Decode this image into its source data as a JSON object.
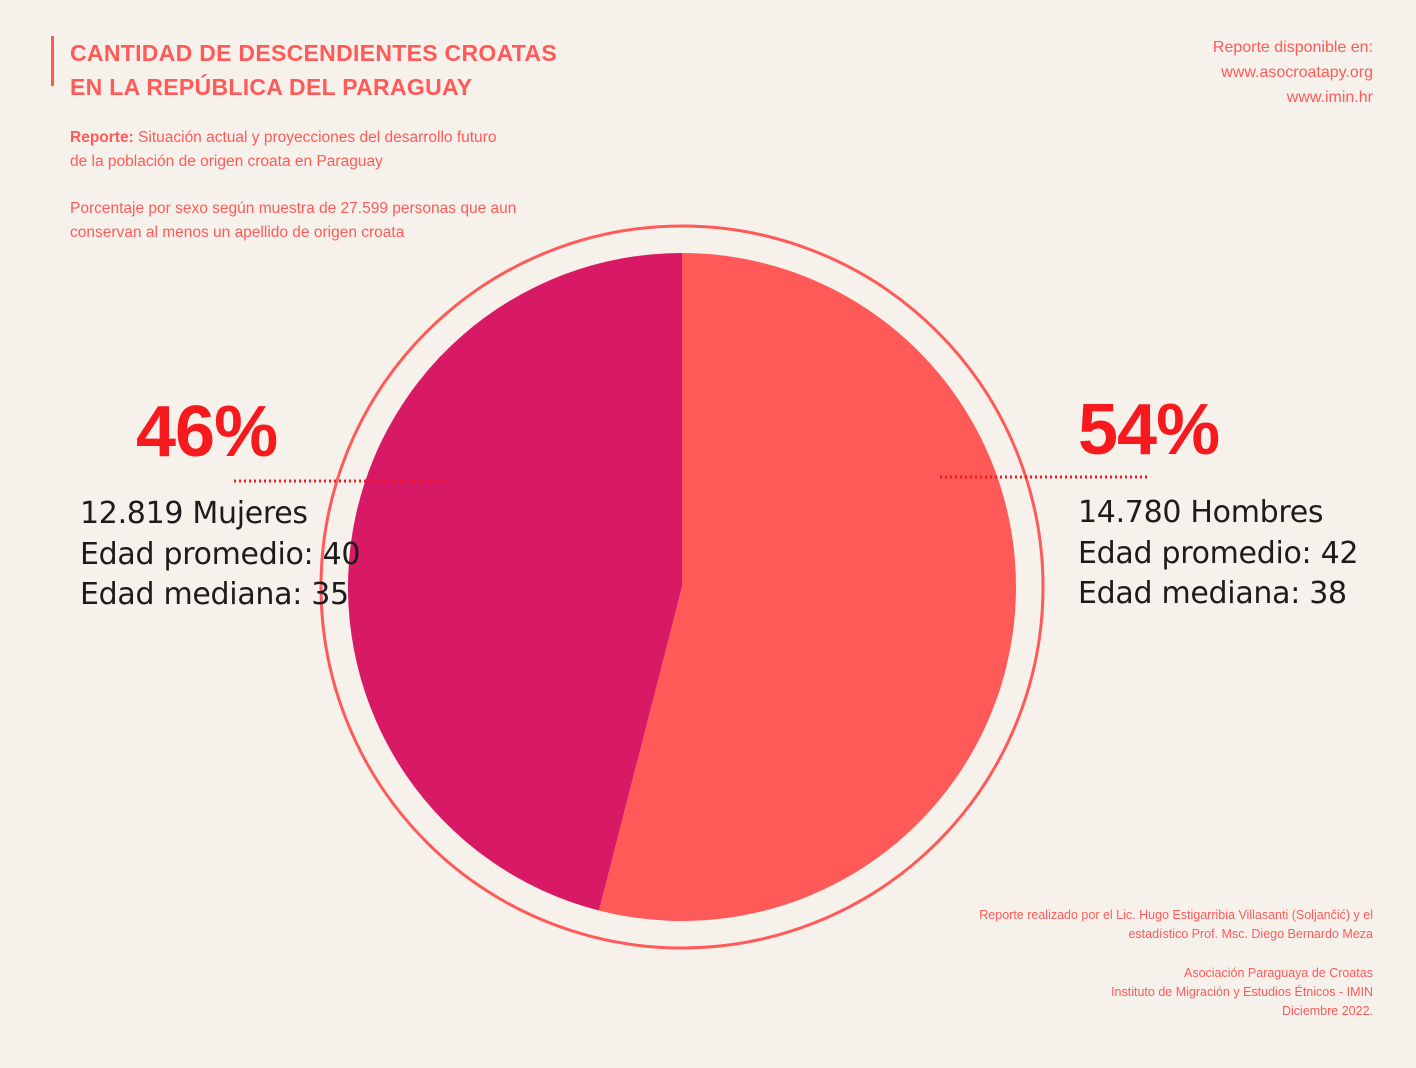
{
  "header": {
    "title_lines": [
      "CANTIDAD DE DESCENDIENTES CROATAS",
      "EN LA REPÚBLICA DEL PARAGUAY"
    ],
    "report_label": "Reporte:",
    "report_text_line1": " Situación actual y proyecciones del desarrollo futuro",
    "report_text_line2": "de la población de origen croata en Paraguay",
    "description_lines": [
      "Porcentaje por sexo según muestra de 27.599 personas que aun",
      "conservan al menos un apellido de origen croata"
    ]
  },
  "source": {
    "label": "Reporte disponible en:",
    "links": [
      "www.asocroatapy.org",
      "www.imin.hr"
    ]
  },
  "chart_data": {
    "type": "pie",
    "total_sample": 27599,
    "slices": [
      {
        "label": "Hombres",
        "value": 54,
        "count": 14780,
        "color": "#ff5a57"
      },
      {
        "label": "Mujeres",
        "value": 46,
        "count": 12819,
        "color": "#d81966"
      }
    ],
    "annotations": {
      "left": {
        "percent": "46%",
        "lines": [
          "12.819 Mujeres",
          "Edad promedio: 40",
          "Edad mediana: 35"
        ]
      },
      "right": {
        "percent": "54%",
        "lines": [
          "14.780 Hombres",
          "Edad promedio: 42",
          "Edad mediana: 38"
        ]
      }
    },
    "colors": {
      "accent": "#ff5a57",
      "highlight": "#f6191e",
      "women": "#d81966",
      "men": "#ff5a57",
      "background": "#f7f1ec"
    }
  },
  "footer": {
    "credits_lines": [
      "Reporte realizado por el Lic. Hugo Estigarribia Villasanti (Soljančić) y el",
      "estadístico Prof. Msc. Diego Bernardo Meza"
    ],
    "org_lines": [
      "Asociación Paraguaya de Croatas",
      "Instituto de Migración y Estudios Étnicos - IMIN",
      "Diciembre 2022."
    ]
  }
}
